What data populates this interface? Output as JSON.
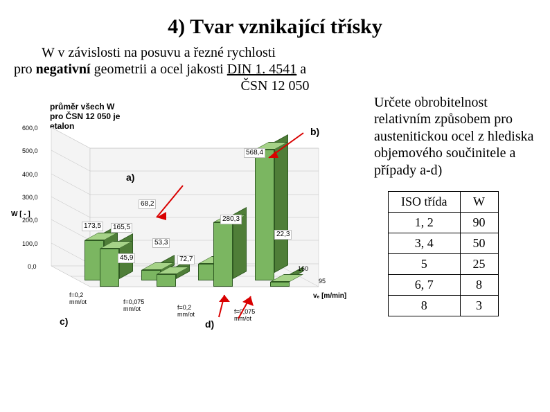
{
  "title": "4) Tvar vznikající třísky",
  "subtitle_line1_pre": "W  v závislosti na posuvu a řezné rychlosti",
  "subtitle_line2_pre": "pro ",
  "subtitle_neg": "negativní",
  "subtitle_line2_post": " geometrii a ocel jakosti ",
  "subtitle_din": "DIN 1. 4541",
  "subtitle_line2_end": " a",
  "subtitle_csn": "ČSN 12 050",
  "right_text": "Určete obrobitelnost relativním způsobem pro austenitickou ocel z hlediska objemového součinitele a případy a-d)",
  "iso_table": {
    "header": [
      "ISO třída",
      "W"
    ],
    "rows": [
      [
        "1, 2",
        "90"
      ],
      [
        "3, 4",
        "50"
      ],
      [
        "5",
        "25"
      ],
      [
        "6, 7",
        "8"
      ],
      [
        "8",
        "3"
      ]
    ]
  },
  "chart": {
    "type": "bar-3d",
    "legend_lines": [
      "průměr všech W",
      "pro ČSN 12 050 je",
      "etalon"
    ],
    "y_axis_label": "W [ - ]",
    "ylim": [
      0,
      600
    ],
    "ytick_step": 100,
    "yticks": [
      0.0,
      100.0,
      200.0,
      300.0,
      400.0,
      500.0,
      600.0
    ],
    "ytick_labels": [
      "0,0",
      "100,0",
      "200,0",
      "300,0",
      "400,0",
      "500,0",
      "600,0"
    ],
    "vc_labels": [
      "160",
      "95"
    ],
    "vc_caption": "vₑ [m/min]",
    "f_labels_front": [
      "f=0,2\nmm/ot",
      "f=0,075\nmm/ot",
      "f=0,2\nmm/ot",
      "f=0,075\nmm/ot"
    ],
    "panel_labels": [
      "a)",
      "b)",
      "c)",
      "d)"
    ],
    "bar_colors": {
      "front": "#7bb661",
      "side": "#4f7e38",
      "top": "#a6d388"
    },
    "value_labels": [
      "173,5",
      "165,5",
      "68,2",
      "45,9",
      "53,3",
      "72,7",
      "568,4",
      "22,3",
      "280,3"
    ],
    "bar_groups": [
      {
        "f": "f=0,2",
        "back": 173.5,
        "front": 165.5,
        "front_label": "165,5",
        "back_label": "173,5",
        "extra_label": "68,2"
      },
      {
        "f": "f=0,075",
        "back": 45.9,
        "front": 53.3,
        "back_label": "45,9",
        "front_label": "53,3",
        "extra_label": null
      },
      {
        "f": "f=0,2",
        "back": 72.7,
        "front": 280.3,
        "back_label": "72,7",
        "front_label": null,
        "extra_label": "280,3"
      },
      {
        "f": "f=0,075",
        "back": 568.4,
        "front": 22.3,
        "back_label": "568,4",
        "front_label": "22,3",
        "extra_label": null
      }
    ],
    "background_color": "#ffffff",
    "grid_color": "#bfbfbf"
  }
}
